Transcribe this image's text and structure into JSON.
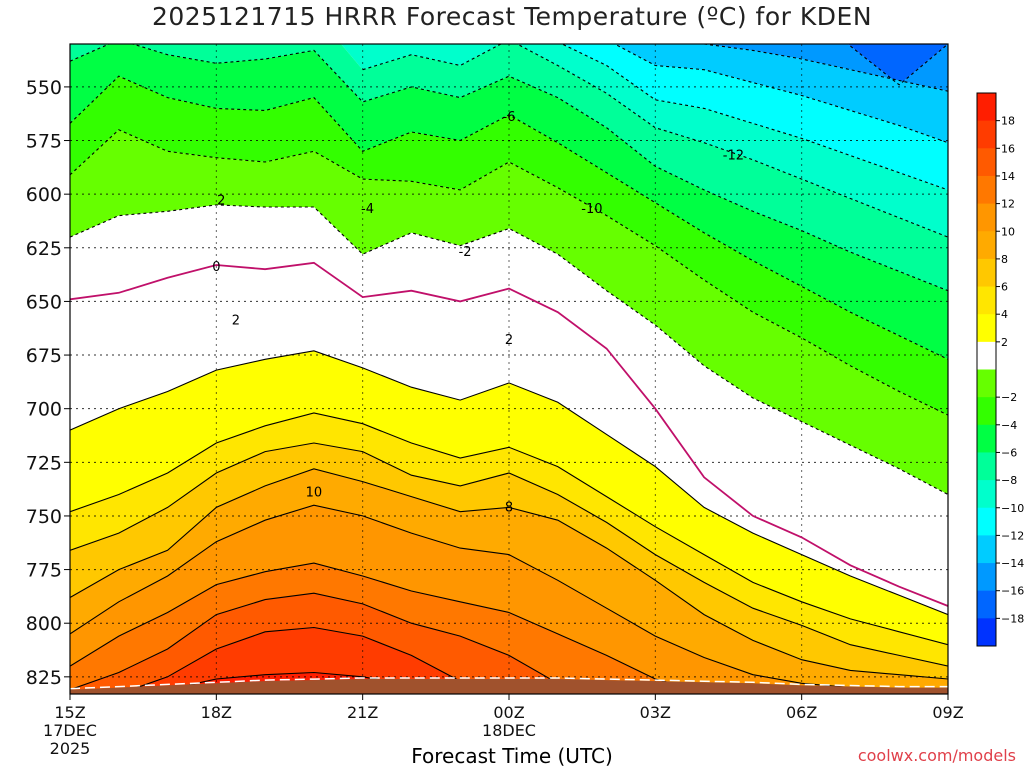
{
  "chart_data": {
    "type": "heatmap",
    "title": "2025121715 HRRR Forecast Temperature (ºC) for KDEN",
    "xlabel": "Forecast Time (UTC)",
    "ylabel": "",
    "x_ticks": [
      {
        "label": "15Z",
        "hour": 15,
        "sub": [
          "17DEC",
          "2025"
        ]
      },
      {
        "label": "18Z",
        "hour": 18,
        "sub": []
      },
      {
        "label": "21Z",
        "hour": 21,
        "sub": []
      },
      {
        "label": "00Z",
        "hour": 24,
        "sub": [
          "18DEC"
        ]
      },
      {
        "label": "03Z",
        "hour": 27,
        "sub": []
      },
      {
        "label": "06Z",
        "hour": 30,
        "sub": []
      },
      {
        "label": "09Z",
        "hour": 33,
        "sub": []
      }
    ],
    "xlim": [
      15,
      33
    ],
    "y_ticks": [
      550,
      575,
      600,
      625,
      650,
      675,
      700,
      725,
      750,
      775,
      800,
      825
    ],
    "ylim_hPa": [
      530,
      833
    ],
    "hours": [
      15,
      16,
      17,
      18,
      19,
      20,
      21,
      22,
      23,
      24,
      25,
      26,
      27,
      28,
      29,
      30,
      31,
      32,
      33
    ],
    "contour_levels": [
      -20,
      -18,
      -16,
      -14,
      -12,
      -10,
      -8,
      -6,
      -4,
      -2,
      0,
      2,
      4,
      6,
      8,
      10,
      12,
      14,
      16,
      18,
      20
    ],
    "isotherms": [
      {
        "level": 18,
        "pressure": [
          null,
          null,
          831,
          826,
          824,
          823,
          825,
          829,
          null,
          null,
          null,
          null,
          null,
          null,
          null,
          null,
          null,
          null,
          null
        ]
      },
      {
        "level": 16,
        "pressure": [
          null,
          833,
          825,
          812,
          804,
          802,
          806,
          815,
          827,
          null,
          null,
          null,
          null,
          null,
          null,
          null,
          null,
          null,
          null
        ]
      },
      {
        "level": 14,
        "pressure": [
          831,
          823,
          812,
          796,
          789,
          786,
          791,
          800,
          806,
          815,
          828,
          null,
          null,
          null,
          null,
          null,
          null,
          null,
          null
        ]
      },
      {
        "level": 12,
        "pressure": [
          820,
          806,
          795,
          782,
          776,
          772,
          778,
          785,
          790,
          795,
          805,
          815,
          826,
          832,
          null,
          null,
          null,
          null,
          null
        ]
      },
      {
        "level": 10,
        "pressure": [
          805,
          790,
          778,
          762,
          752,
          745,
          750,
          758,
          765,
          768,
          780,
          793,
          806,
          816,
          824,
          828,
          830,
          831,
          832
        ]
      },
      {
        "level": 8,
        "pressure": [
          788,
          775,
          766,
          746,
          736,
          728,
          734,
          741,
          748,
          746,
          752,
          765,
          780,
          796,
          808,
          817,
          822,
          824,
          826
        ]
      },
      {
        "level": 6,
        "pressure": [
          766,
          758,
          746,
          730,
          720,
          716,
          720,
          731,
          736,
          730,
          740,
          753,
          768,
          781,
          793,
          801,
          810,
          815,
          820
        ]
      },
      {
        "level": 4,
        "pressure": [
          748,
          740,
          730,
          716,
          708,
          702,
          707,
          716,
          723,
          718,
          727,
          741,
          755,
          768,
          781,
          790,
          798,
          804,
          810
        ]
      },
      {
        "level": 2,
        "pressure": [
          710,
          700,
          692,
          682,
          677,
          673,
          681,
          690,
          696,
          688,
          697,
          712,
          727,
          746,
          758,
          768,
          778,
          787,
          796
        ]
      },
      {
        "level": 0,
        "pressure": [
          649,
          646,
          639,
          633,
          635,
          632,
          648,
          645,
          650,
          644,
          655,
          672,
          700,
          732,
          750,
          760,
          773,
          783,
          792
        ]
      },
      {
        "level": -2,
        "pressure": [
          620,
          610,
          608,
          605,
          606,
          606,
          628,
          618,
          624,
          616,
          628,
          645,
          661,
          680,
          695,
          706,
          717,
          728,
          740
        ]
      },
      {
        "level": -4,
        "pressure": [
          591,
          570,
          580,
          583,
          585,
          580,
          593,
          594,
          598,
          585,
          597,
          610,
          624,
          640,
          655,
          667,
          680,
          692,
          703
        ]
      },
      {
        "level": -6,
        "pressure": [
          567,
          545,
          555,
          560,
          561,
          555,
          580,
          571,
          575,
          563,
          576,
          590,
          604,
          618,
          631,
          643,
          655,
          666,
          677
        ]
      },
      {
        "level": -8,
        "pressure": [
          538,
          528,
          535,
          539,
          537,
          533,
          557,
          550,
          555,
          545,
          555,
          569,
          587,
          598,
          608,
          617,
          627,
          636,
          645
        ]
      },
      {
        "level": -10,
        "pressure": [
          null,
          null,
          null,
          null,
          null,
          null,
          542,
          535,
          540,
          528,
          540,
          553,
          569,
          576,
          584,
          593,
          602,
          611,
          620
        ]
      },
      {
        "level": -12,
        "pressure": [
          null,
          null,
          null,
          null,
          null,
          null,
          null,
          null,
          null,
          null,
          529,
          540,
          556,
          560,
          567,
          574,
          582,
          590,
          598
        ]
      },
      {
        "level": -14,
        "pressure": [
          null,
          null,
          null,
          null,
          null,
          null,
          null,
          null,
          null,
          null,
          null,
          528,
          540,
          542,
          548,
          554,
          561,
          568,
          576
        ]
      },
      {
        "level": -16,
        "pressure": [
          null,
          null,
          null,
          null,
          null,
          null,
          null,
          null,
          null,
          null,
          null,
          null,
          null,
          530,
          533,
          537,
          542,
          547,
          552
        ]
      },
      {
        "level": -18,
        "pressure": [
          null,
          null,
          null,
          null,
          null,
          null,
          null,
          null,
          null,
          null,
          null,
          null,
          null,
          null,
          null,
          null,
          531,
          549,
          530
        ]
      }
    ],
    "contour_labels": [
      {
        "text": "-6",
        "hour": 24,
        "pressure": 564
      },
      {
        "text": "-12",
        "hour": 28.6,
        "pressure": 582
      },
      {
        "text": "2",
        "hour": 18.1,
        "pressure": 603
      },
      {
        "text": "-4",
        "hour": 21.1,
        "pressure": 607
      },
      {
        "text": "-10",
        "hour": 25.7,
        "pressure": 607
      },
      {
        "text": "-2",
        "hour": 23.1,
        "pressure": 627
      },
      {
        "text": "0",
        "hour": 18,
        "pressure": 634
      },
      {
        "text": "2",
        "hour": 18.4,
        "pressure": 659
      },
      {
        "text": "2",
        "hour": 24,
        "pressure": 668
      },
      {
        "text": "10",
        "hour": 20,
        "pressure": 739
      },
      {
        "text": "8",
        "hour": 24,
        "pressure": 746
      }
    ],
    "terrain_hPa": [
      831,
      830,
      829,
      828,
      827,
      826.5,
      826,
      826,
      826,
      826,
      826,
      826.5,
      827,
      827.5,
      828,
      829,
      829.5,
      830,
      830
    ],
    "colorbar": {
      "labels": [
        "18",
        "16",
        "14",
        "12",
        "10",
        "8",
        "6",
        "4",
        "2",
        "−2",
        "−4",
        "−6",
        "−8",
        "−10",
        "−12",
        "−14",
        "−16",
        "−18"
      ],
      "colors": [
        "#ff1e00",
        "#ff3c00",
        "#ff5a00",
        "#ff7800",
        "#ff9600",
        "#ffaa00",
        "#ffc800",
        "#ffe600",
        "#ffff00",
        "#ffffff",
        "#66ff00",
        "#33ff00",
        "#00ff44",
        "#00ff99",
        "#00ffcc",
        "#00ffff",
        "#00ccff",
        "#0099ff",
        "#0066ff",
        "#0033ff"
      ]
    },
    "grid": true,
    "legend": "right"
  },
  "credit": "coolwx.com/models"
}
